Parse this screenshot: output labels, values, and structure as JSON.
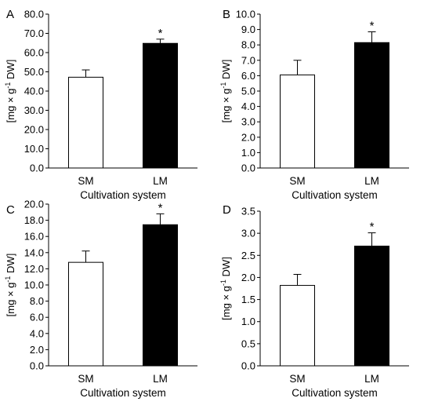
{
  "chart_data": [
    {
      "panel": "A",
      "type": "bar",
      "categories": [
        "SM",
        "LM"
      ],
      "values": [
        47.2,
        64.8
      ],
      "errors": [
        3.8,
        2.2
      ],
      "significance": [
        "",
        "*"
      ],
      "bar_colors": [
        "#ffffff",
        "#000000"
      ],
      "ylim": [
        0,
        80
      ],
      "yticks": [
        "0.0",
        "10.0",
        "20.0",
        "30.0",
        "40.0",
        "50.0",
        "60.0",
        "70.0",
        "80.0"
      ],
      "ylabel": "[mg × g",
      "ylabel_sup": "-1",
      "ylabel_tail": " DW]",
      "xlabel": "Cultivation system"
    },
    {
      "panel": "B",
      "type": "bar",
      "categories": [
        "SM",
        "LM"
      ],
      "values": [
        6.05,
        8.15
      ],
      "errors": [
        0.95,
        0.7
      ],
      "significance": [
        "",
        "*"
      ],
      "bar_colors": [
        "#ffffff",
        "#000000"
      ],
      "ylim": [
        0,
        10
      ],
      "yticks": [
        "0.0",
        "1.0",
        "2.0",
        "3.0",
        "4.0",
        "5.0",
        "6.0",
        "7.0",
        "8.0",
        "9.0",
        "10.0"
      ],
      "ylabel": "[mg × g",
      "ylabel_sup": "-1",
      "ylabel_tail": " DW]",
      "xlabel": "Cultivation system"
    },
    {
      "panel": "C",
      "type": "bar",
      "categories": [
        "SM",
        "LM"
      ],
      "values": [
        12.8,
        17.45
      ],
      "errors": [
        1.4,
        1.35
      ],
      "significance": [
        "",
        "*"
      ],
      "bar_colors": [
        "#ffffff",
        "#000000"
      ],
      "ylim": [
        0,
        20
      ],
      "yticks": [
        "0.0",
        "2.0",
        "4.0",
        "6.0",
        "8.0",
        "10.0",
        "12.0",
        "14.0",
        "16.0",
        "18.0",
        "20.0"
      ],
      "ylabel": "[mg × g",
      "ylabel_sup": "-1",
      "ylabel_tail": " DW]",
      "xlabel": "Cultivation system"
    },
    {
      "panel": "D",
      "type": "bar",
      "categories": [
        "SM",
        "LM"
      ],
      "values": [
        1.82,
        2.71
      ],
      "errors": [
        0.25,
        0.3
      ],
      "significance": [
        "",
        "*"
      ],
      "bar_colors": [
        "#ffffff",
        "#000000"
      ],
      "ylim": [
        0,
        3.5
      ],
      "yticks": [
        "0.0",
        "0.5",
        "1.0",
        "1.5",
        "2.0",
        "2.5",
        "3.0",
        "3.5"
      ],
      "ylabel": "[mg × g",
      "ylabel_sup": "-1",
      "ylabel_tail": " DW]",
      "xlabel": "Cultivation system"
    }
  ]
}
